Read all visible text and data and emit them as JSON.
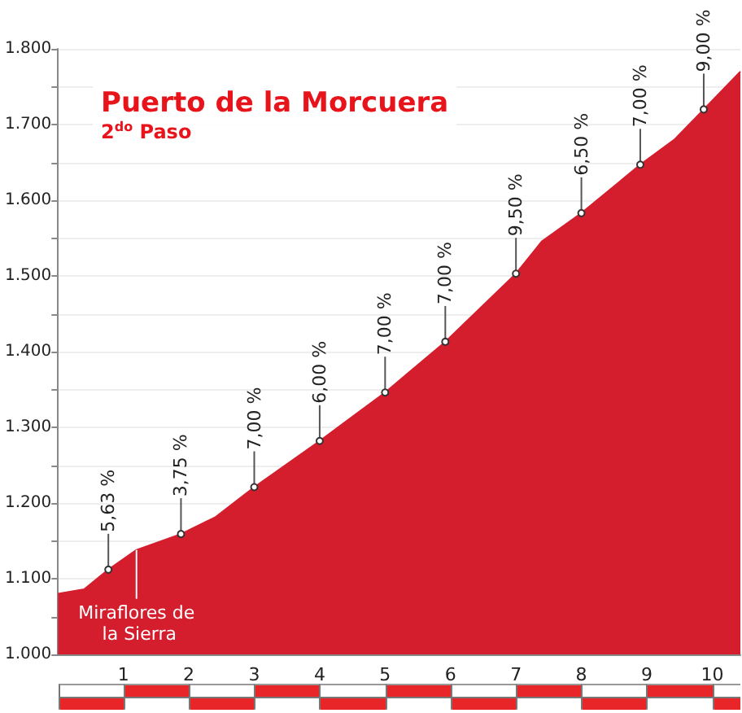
{
  "chart_data": {
    "type": "area",
    "title": "Puerto de la Morcuera",
    "subtitle": "2$^{do}$ Paso",
    "series": [
      {
        "color": "#d41e2e",
        "x": [
          0,
          0.4,
          0.77,
          1.2,
          1.88,
          2.4,
          3,
          4,
          5,
          5.92,
          7,
          7.4,
          8,
          8.9,
          9.42,
          9.87,
          10.43
        ],
        "values": [
          1080,
          1086,
          1112,
          1138,
          1159,
          1181,
          1221,
          1282,
          1346,
          1413,
          1503,
          1546,
          1583,
          1647,
          1680,
          1720,
          1770
        ]
      }
    ],
    "xlim": [
      0,
      10.43
    ],
    "xticks": [
      1,
      2,
      3,
      4,
      5,
      6,
      7,
      8,
      9,
      10
    ],
    "ylim": [
      1000,
      1800
    ],
    "yticks": [
      {
        "value": 1000,
        "label": "1.000"
      },
      {
        "value": 1050,
        "label": null
      },
      {
        "value": 1100,
        "label": "1.100"
      },
      {
        "value": 1150,
        "label": null
      },
      {
        "value": 1200,
        "label": "1.200"
      },
      {
        "value": 1250,
        "label": null
      },
      {
        "value": 1300,
        "label": "1.300"
      },
      {
        "value": 1350,
        "label": null
      },
      {
        "value": 1400,
        "label": "1.400"
      },
      {
        "value": 1450,
        "label": null
      },
      {
        "value": 1500,
        "label": "1.500"
      },
      {
        "value": 1550,
        "label": null
      },
      {
        "value": 1600,
        "label": "1.600"
      },
      {
        "value": 1650,
        "label": null
      },
      {
        "value": 1700,
        "label": "1.700"
      },
      {
        "value": 1750,
        "label": null
      },
      {
        "value": 1800,
        "label": "1.800"
      }
    ],
    "grid": "y",
    "ref_lines": [
      {
        "axis": "x",
        "value": 1.2,
        "label": "Miraflores de la Sierra",
        "color": "#ffffff"
      }
    ],
    "annotations": [
      {
        "text": "5,63 %",
        "x": 0.77,
        "y": 1112
      },
      {
        "text": "3,75 %",
        "x": 1.88,
        "y": 1159
      },
      {
        "text": "7,00 %",
        "x": 3,
        "y": 1221
      },
      {
        "text": "6,00 %",
        "x": 4,
        "y": 1282
      },
      {
        "text": "7,00 %",
        "x": 5,
        "y": 1346
      },
      {
        "text": "7,00 %",
        "x": 5.92,
        "y": 1413
      },
      {
        "text": "9,50 %",
        "x": 7,
        "y": 1503
      },
      {
        "text": "6,50 %",
        "x": 8,
        "y": 1583
      },
      {
        "text": "7,00 %",
        "x": 8.9,
        "y": 1647
      },
      {
        "text": "9,00 %",
        "x": 9.87,
        "y": 1720
      }
    ]
  }
}
